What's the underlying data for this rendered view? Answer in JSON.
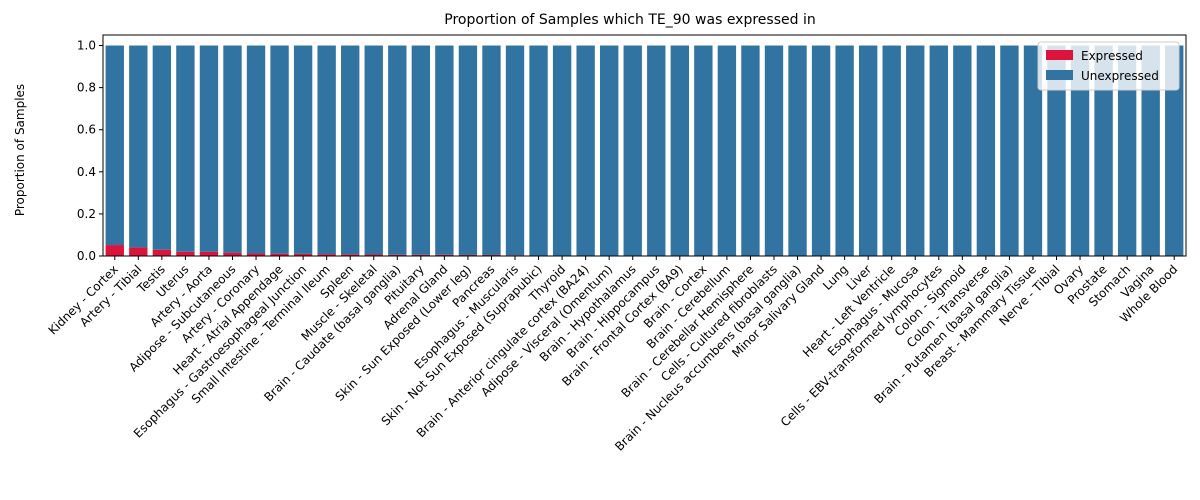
{
  "chart_data": {
    "type": "bar",
    "stacked": true,
    "title": "Proportion of Samples which TE_90 was expressed in",
    "xlabel": "",
    "ylabel": "Proportion of Samples",
    "ylim": [
      0,
      1.05
    ],
    "yticks": [
      "0.0",
      "0.2",
      "0.4",
      "0.6",
      "0.8",
      "1.0"
    ],
    "legend_position": "top-right",
    "categories": [
      "Kidney - Cortex",
      "Artery - Tibial",
      "Testis",
      "Uterus",
      "Artery - Aorta",
      "Adipose - Subcutaneous",
      "Artery - Coronary",
      "Heart - Atrial Appendage",
      "Esophagus - Gastroesophageal Junction",
      "Small Intestine - Terminal Ileum",
      "Spleen",
      "Muscle - Skeletal",
      "Brain - Caudate (basal ganglia)",
      "Pituitary",
      "Adrenal Gland",
      "Skin - Sun Exposed (Lower leg)",
      "Pancreas",
      "Esophagus - Muscularis",
      "Skin - Not Sun Exposed (Suprapubic)",
      "Thyroid",
      "Brain - Anterior cingulate cortex (BA24)",
      "Adipose - Visceral (Omentum)",
      "Brain - Hypothalamus",
      "Brain - Hippocampus",
      "Brain - Frontal Cortex (BA9)",
      "Brain - Cortex",
      "Brain - Cerebellum",
      "Brain - Cerebellar Hemisphere",
      "Cells - Cultured fibroblasts",
      "Brain - Nucleus accumbens (basal ganglia)",
      "Minor Salivary Gland",
      "Lung",
      "Liver",
      "Heart - Left Ventricle",
      "Esophagus - Mucosa",
      "Cells - EBV-transformed lymphocytes",
      "Colon - Sigmoid",
      "Colon - Transverse",
      "Brain - Putamen (basal ganglia)",
      "Breast - Mammary Tissue",
      "Nerve - Tibial",
      "Ovary",
      "Prostate",
      "Stomach",
      "Vagina",
      "Whole Blood"
    ],
    "series": [
      {
        "name": "Expressed",
        "color": "#dc143c",
        "values": [
          0.052,
          0.04,
          0.03,
          0.02,
          0.02,
          0.016,
          0.012,
          0.011,
          0.01,
          0.009,
          0.008,
          0.007,
          0.006,
          0.006,
          0.006,
          0.005,
          0.005,
          0.004,
          0,
          0,
          0,
          0,
          0,
          0,
          0,
          0,
          0,
          0,
          0,
          0,
          0,
          0,
          0,
          0,
          0,
          0,
          0,
          0,
          0,
          0,
          0,
          0,
          0,
          0,
          0,
          0
        ]
      },
      {
        "name": "Unexpressed",
        "color": "#3274a1",
        "values": [
          0.948,
          0.96,
          0.97,
          0.98,
          0.98,
          0.984,
          0.988,
          0.989,
          0.99,
          0.991,
          0.992,
          0.993,
          0.994,
          0.994,
          0.994,
          0.995,
          0.995,
          0.996,
          1,
          1,
          1,
          1,
          1,
          1,
          1,
          1,
          1,
          1,
          1,
          1,
          1,
          1,
          1,
          1,
          1,
          1,
          1,
          1,
          1,
          1,
          1,
          1,
          1,
          1,
          1,
          1
        ]
      }
    ]
  }
}
